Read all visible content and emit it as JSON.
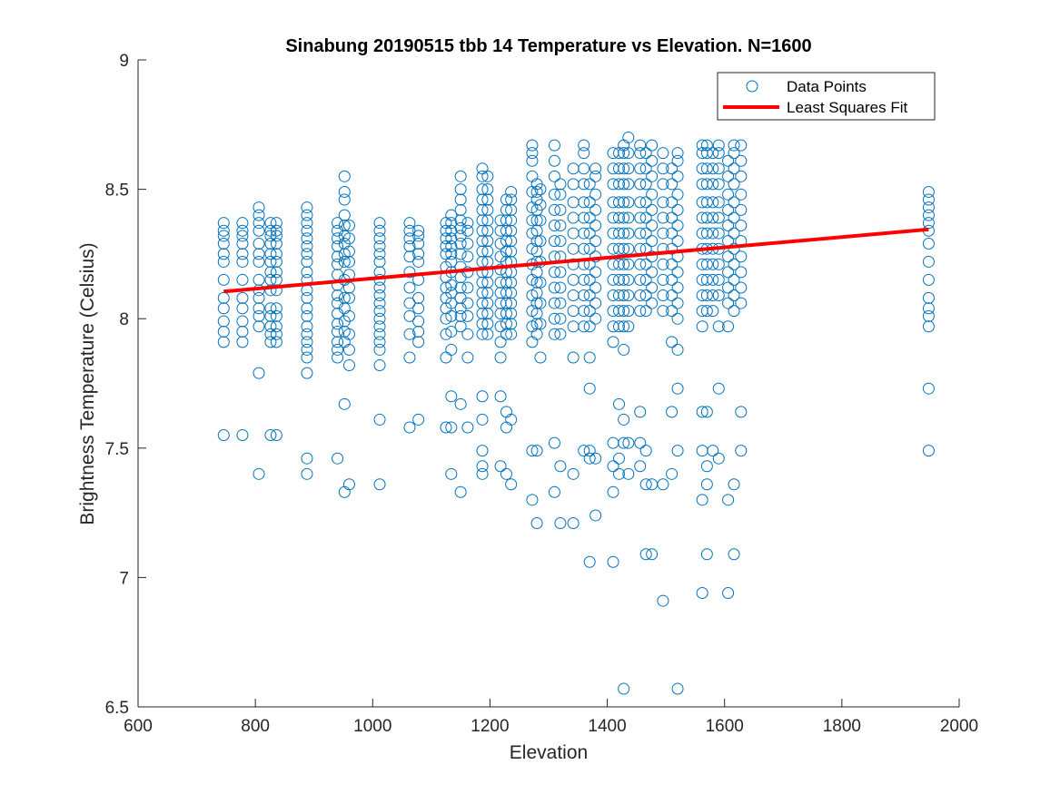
{
  "chart_data": {
    "type": "scatter",
    "title": "Sinabung 20190515 tbb 14 Temperature vs Elevation. N=1600",
    "xlabel": "Elevation",
    "ylabel": "Brightness Temperature (Celsius)",
    "xlim": [
      600,
      2000
    ],
    "ylim": [
      6.5,
      9
    ],
    "xticks": [
      600,
      800,
      1000,
      1200,
      1400,
      1600,
      1800,
      2000
    ],
    "yticks": [
      6.5,
      7,
      7.5,
      8,
      8.5,
      9
    ],
    "xtick_labels": [
      "600",
      "800",
      "1000",
      "1200",
      "1400",
      "1600",
      "1800",
      "2000"
    ],
    "ytick_labels": [
      "6.5",
      "7",
      "7.5",
      "8",
      "8.5",
      "9"
    ],
    "grid": false,
    "legend": {
      "location": "top-right",
      "entries": [
        "Data Points",
        "Least Squares Fit"
      ]
    },
    "colors": {
      "points": "#0072BD",
      "fit": "#FF0000"
    },
    "series": [
      {
        "name": "Data Points",
        "marker": "circle-open",
        "columns": [
          {
            "x": 746,
            "y": [
              7.91,
              7.95,
              7.99,
              8.04,
              8.08,
              8.15,
              8.22,
              8.25,
              8.29,
              8.32,
              8.34,
              8.37,
              7.55
            ]
          },
          {
            "x": 778,
            "y": [
              7.91,
              7.95,
              7.99,
              8.04,
              8.08,
              8.15,
              8.22,
              8.25,
              8.29,
              8.32,
              8.34,
              8.37,
              7.55
            ]
          },
          {
            "x": 806,
            "y": [
              7.97,
              8.01,
              8.04,
              8.08,
              8.11,
              8.15,
              8.22,
              8.25,
              8.29,
              8.34,
              8.37,
              8.4,
              8.43,
              7.79,
              7.4
            ]
          },
          {
            "x": 826,
            "y": [
              7.91,
              7.94,
              7.97,
              8.01,
              8.04,
              8.11,
              8.15,
              8.18,
              8.22,
              8.25,
              8.29,
              8.32,
              8.34,
              8.37,
              7.55
            ]
          },
          {
            "x": 836,
            "y": [
              7.91,
              7.94,
              7.97,
              8.01,
              8.04,
              8.11,
              8.15,
              8.18,
              8.22,
              8.25,
              8.29,
              8.32,
              8.34,
              8.37,
              7.55
            ]
          },
          {
            "x": 888,
            "y": [
              7.85,
              7.88,
              7.91,
              7.94,
              7.97,
              8.01,
              8.04,
              8.08,
              8.11,
              8.15,
              8.18,
              8.22,
              8.25,
              8.28,
              8.31,
              8.34,
              8.37,
              8.4,
              8.43,
              7.79,
              7.46,
              7.4
            ]
          },
          {
            "x": 940,
            "y": [
              7.85,
              7.88,
              7.91,
              7.95,
              7.98,
              8.02,
              8.06,
              8.09,
              8.13,
              8.17,
              8.21,
              8.24,
              8.28,
              8.31,
              8.34,
              8.37,
              7.46
            ]
          },
          {
            "x": 952,
            "y": [
              7.91,
              7.95,
              7.99,
              8.04,
              8.08,
              8.15,
              8.22,
              8.25,
              8.29,
              8.32,
              8.36,
              8.4,
              8.46,
              8.49,
              8.55,
              7.67,
              7.33
            ]
          },
          {
            "x": 960,
            "y": [
              7.82,
              7.88,
              7.94,
              8.01,
              8.08,
              8.12,
              8.17,
              8.22,
              8.26,
              8.31,
              8.36,
              7.36
            ]
          },
          {
            "x": 1012,
            "y": [
              7.82,
              7.88,
              7.91,
              7.94,
              7.97,
              8.0,
              8.03,
              8.06,
              8.09,
              8.12,
              8.15,
              8.18,
              8.22,
              8.25,
              8.28,
              8.31,
              8.34,
              8.37,
              7.61,
              7.36
            ]
          },
          {
            "x": 1063,
            "y": [
              7.85,
              7.94,
              8.01,
              8.06,
              8.12,
              8.18,
              8.24,
              8.28,
              8.31,
              8.34,
              8.37,
              7.58
            ]
          },
          {
            "x": 1078,
            "y": [
              7.91,
              7.95,
              7.99,
              8.04,
              8.08,
              8.15,
              8.22,
              8.25,
              8.29,
              8.32,
              8.34,
              7.61
            ]
          },
          {
            "x": 1125,
            "y": [
              7.85,
              7.94,
              8.0,
              8.04,
              8.08,
              8.12,
              8.16,
              8.2,
              8.25,
              8.28,
              8.31,
              8.34,
              8.37,
              7.58
            ]
          },
          {
            "x": 1134,
            "y": [
              7.88,
              7.95,
              8.01,
              8.06,
              8.1,
              8.13,
              8.18,
              8.22,
              8.25,
              8.28,
              8.31,
              8.34,
              8.37,
              8.4,
              7.7,
              7.58,
              7.4
            ]
          },
          {
            "x": 1150,
            "y": [
              7.97,
              8.01,
              8.04,
              8.08,
              8.12,
              8.16,
              8.2,
              8.25,
              8.29,
              8.32,
              8.35,
              8.38,
              8.42,
              8.46,
              8.5,
              8.55,
              7.67,
              7.33
            ]
          },
          {
            "x": 1162,
            "y": [
              7.85,
              7.94,
              8.01,
              8.06,
              8.12,
              8.18,
              8.24,
              8.29,
              8.34,
              8.37,
              7.58
            ]
          },
          {
            "x": 1187,
            "y": [
              7.94,
              7.98,
              8.02,
              8.06,
              8.1,
              8.14,
              8.18,
              8.22,
              8.26,
              8.3,
              8.34,
              8.38,
              8.42,
              8.46,
              8.5,
              8.55,
              8.58,
              7.7,
              7.61,
              7.49,
              7.43,
              7.4
            ]
          },
          {
            "x": 1196,
            "y": [
              7.94,
              7.98,
              8.02,
              8.06,
              8.1,
              8.14,
              8.18,
              8.22,
              8.26,
              8.3,
              8.34,
              8.38,
              8.42,
              8.46,
              8.5,
              8.55
            ]
          },
          {
            "x": 1218,
            "y": [
              7.85,
              7.91,
              7.97,
              8.02,
              8.06,
              8.1,
              8.14,
              8.19,
              8.24,
              8.29,
              8.34,
              8.38,
              7.7,
              7.43
            ]
          },
          {
            "x": 1228,
            "y": [
              7.94,
              7.98,
              8.02,
              8.06,
              8.1,
              8.14,
              8.18,
              8.22,
              8.26,
              8.3,
              8.34,
              8.38,
              8.42,
              8.46,
              7.64,
              7.58,
              7.4
            ]
          },
          {
            "x": 1236,
            "y": [
              7.94,
              7.98,
              8.02,
              8.06,
              8.1,
              8.14,
              8.18,
              8.22,
              8.26,
              8.3,
              8.34,
              8.38,
              8.42,
              8.46,
              8.49,
              7.61,
              7.36
            ]
          },
          {
            "x": 1272,
            "y": [
              7.91,
              7.97,
              8.03,
              8.09,
              8.15,
              8.21,
              8.27,
              8.33,
              8.38,
              8.43,
              8.49,
              8.55,
              8.61,
              8.64,
              8.67,
              7.49,
              7.3
            ]
          },
          {
            "x": 1280,
            "y": [
              7.94,
              7.98,
              8.02,
              8.06,
              8.1,
              8.14,
              8.18,
              8.22,
              8.26,
              8.3,
              8.34,
              8.38,
              8.42,
              8.46,
              8.49,
              8.52,
              7.49,
              7.21
            ]
          },
          {
            "x": 1286,
            "y": [
              7.85,
              7.98,
              8.06,
              8.14,
              8.22,
              8.3,
              8.38,
              8.44,
              8.5
            ]
          },
          {
            "x": 1310,
            "y": [
              7.94,
              8.0,
              8.06,
              8.12,
              8.18,
              8.24,
              8.3,
              8.36,
              8.42,
              8.48,
              8.55,
              8.61,
              8.67,
              7.52,
              7.33
            ]
          },
          {
            "x": 1320,
            "y": [
              7.94,
              8.0,
              8.06,
              8.12,
              8.18,
              8.24,
              8.3,
              8.36,
              8.42,
              8.48,
              8.52,
              7.43,
              7.21
            ]
          },
          {
            "x": 1342,
            "y": [
              7.85,
              7.97,
              8.03,
              8.09,
              8.15,
              8.21,
              8.27,
              8.33,
              8.39,
              8.45,
              8.52,
              8.58,
              7.4,
              7.21
            ]
          },
          {
            "x": 1360,
            "y": [
              7.97,
              8.03,
              8.09,
              8.15,
              8.21,
              8.27,
              8.33,
              8.39,
              8.45,
              8.52,
              8.58,
              8.64,
              8.67,
              7.49
            ]
          },
          {
            "x": 1370,
            "y": [
              7.85,
              7.97,
              8.03,
              8.09,
              8.15,
              8.21,
              8.27,
              8.33,
              8.39,
              8.45,
              8.52,
              7.73,
              7.49,
              7.46,
              7.06
            ]
          },
          {
            "x": 1380,
            "y": [
              8.0,
              8.06,
              8.12,
              8.18,
              8.24,
              8.3,
              8.36,
              8.42,
              8.48,
              8.55,
              8.58,
              7.46,
              7.24
            ]
          },
          {
            "x": 1410,
            "y": [
              7.91,
              7.97,
              8.03,
              8.09,
              8.15,
              8.21,
              8.27,
              8.33,
              8.39,
              8.45,
              8.52,
              8.58,
              8.64,
              7.52,
              7.43,
              7.33,
              7.06
            ]
          },
          {
            "x": 1420,
            "y": [
              7.97,
              8.03,
              8.09,
              8.15,
              8.21,
              8.27,
              8.33,
              8.39,
              8.45,
              8.52,
              8.58,
              8.64,
              7.67,
              7.46,
              7.4
            ]
          },
          {
            "x": 1428,
            "y": [
              7.88,
              7.97,
              8.03,
              8.09,
              8.15,
              8.21,
              8.27,
              8.33,
              8.39,
              8.45,
              8.52,
              8.58,
              8.64,
              8.67,
              7.61,
              7.52,
              6.57
            ]
          },
          {
            "x": 1436,
            "y": [
              7.97,
              8.03,
              8.09,
              8.15,
              8.21,
              8.27,
              8.33,
              8.39,
              8.45,
              8.52,
              8.58,
              8.64,
              8.7,
              7.52,
              7.4
            ]
          },
          {
            "x": 1456,
            "y": [
              8.03,
              8.09,
              8.15,
              8.21,
              8.27,
              8.33,
              8.39,
              8.45,
              8.52,
              8.58,
              8.64,
              8.67,
              7.64,
              7.52,
              7.43
            ]
          },
          {
            "x": 1466,
            "y": [
              8.03,
              8.09,
              8.15,
              8.21,
              8.27,
              8.33,
              8.39,
              8.45,
              8.52,
              8.58,
              8.64,
              7.49,
              7.36,
              7.09
            ]
          },
          {
            "x": 1476,
            "y": [
              8.06,
              8.12,
              8.18,
              8.24,
              8.3,
              8.36,
              8.42,
              8.48,
              8.55,
              8.61,
              8.67,
              7.36,
              7.09
            ]
          },
          {
            "x": 1495,
            "y": [
              8.03,
              8.09,
              8.15,
              8.21,
              8.27,
              8.33,
              8.39,
              8.45,
              8.52,
              8.58,
              8.64,
              7.36,
              6.91
            ]
          },
          {
            "x": 1510,
            "y": [
              7.91,
              8.03,
              8.09,
              8.15,
              8.21,
              8.27,
              8.33,
              8.39,
              8.45,
              8.52,
              8.58,
              7.64,
              7.4
            ]
          },
          {
            "x": 1520,
            "y": [
              7.88,
              8.0,
              8.06,
              8.12,
              8.18,
              8.24,
              8.3,
              8.36,
              8.42,
              8.48,
              8.55,
              8.61,
              8.64,
              7.73,
              7.49,
              6.57
            ]
          },
          {
            "x": 1562,
            "y": [
              7.97,
              8.03,
              8.09,
              8.15,
              8.21,
              8.27,
              8.33,
              8.39,
              8.45,
              8.52,
              8.58,
              8.64,
              8.67,
              7.64,
              7.49,
              7.3,
              6.94
            ]
          },
          {
            "x": 1570,
            "y": [
              8.03,
              8.09,
              8.15,
              8.21,
              8.27,
              8.33,
              8.39,
              8.45,
              8.52,
              8.58,
              8.64,
              8.67,
              7.64,
              7.43,
              7.36,
              7.09
            ]
          },
          {
            "x": 1580,
            "y": [
              8.03,
              8.09,
              8.15,
              8.21,
              8.27,
              8.33,
              8.39,
              8.45,
              8.52,
              8.58,
              8.64,
              7.49
            ]
          },
          {
            "x": 1590,
            "y": [
              7.97,
              8.09,
              8.15,
              8.21,
              8.27,
              8.33,
              8.39,
              8.45,
              8.52,
              8.58,
              8.64,
              8.67,
              7.73,
              7.46
            ]
          },
          {
            "x": 1606,
            "y": [
              7.97,
              8.06,
              8.12,
              8.18,
              8.24,
              8.3,
              8.36,
              8.42,
              8.48,
              8.55,
              8.61,
              7.3,
              6.94
            ]
          },
          {
            "x": 1616,
            "y": [
              8.03,
              8.09,
              8.15,
              8.21,
              8.27,
              8.33,
              8.39,
              8.45,
              8.52,
              8.58,
              8.64,
              8.67,
              7.36,
              7.09
            ]
          },
          {
            "x": 1628,
            "y": [
              8.06,
              8.12,
              8.18,
              8.24,
              8.3,
              8.36,
              8.42,
              8.48,
              8.55,
              8.61,
              8.67,
              7.64,
              7.49
            ]
          },
          {
            "x": 1948,
            "y": [
              7.97,
              8.01,
              8.04,
              8.08,
              8.15,
              8.22,
              8.29,
              8.34,
              8.37,
              8.4,
              8.43,
              8.46,
              8.49,
              7.73,
              7.49
            ]
          }
        ]
      },
      {
        "name": "Least Squares Fit",
        "type": "line",
        "x": [
          746,
          1948
        ],
        "y": [
          8.105,
          8.345
        ]
      }
    ]
  }
}
